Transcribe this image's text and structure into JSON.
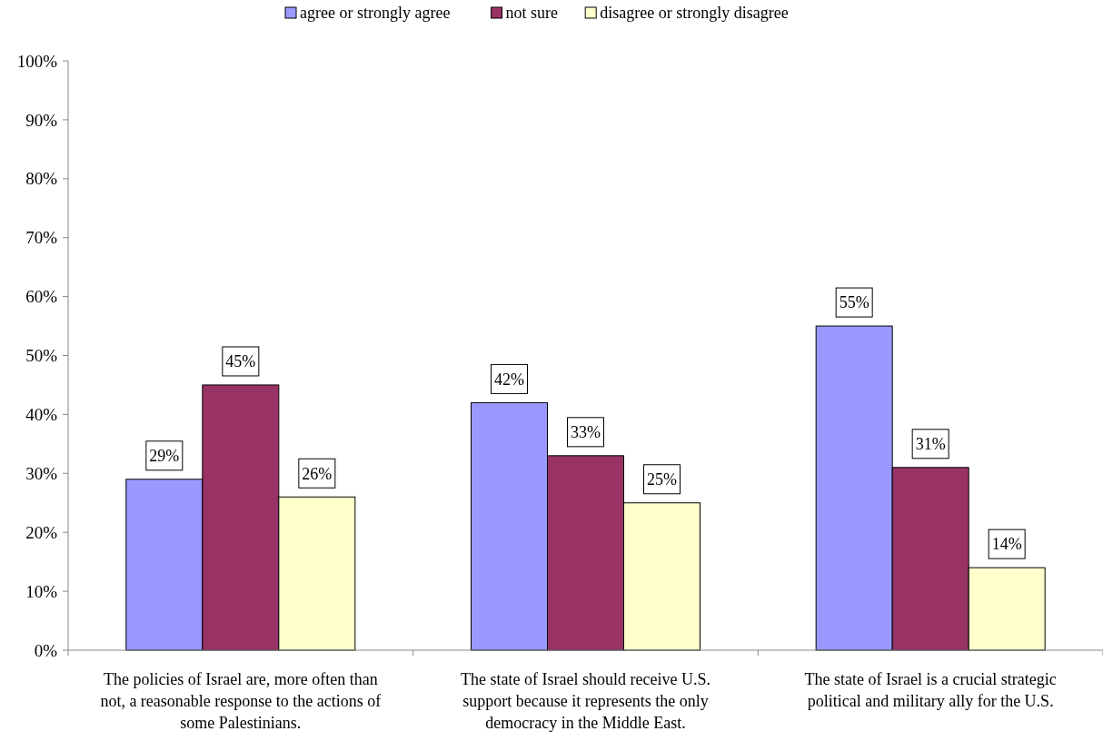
{
  "chart_data": {
    "type": "bar",
    "categories": [
      "The policies of Israel are, more often than not, a reasonable response to the actions of some Palestinians.",
      "The state of Israel should receive U.S. support because it represents the only democracy in the Middle East.",
      "The state of Israel is a crucial strategic political and military ally for the U.S."
    ],
    "series": [
      {
        "name": "agree or strongly agree",
        "color": "#9999ff",
        "values": [
          29,
          42,
          55
        ],
        "value_labels": [
          "29%",
          "42%",
          "55%"
        ]
      },
      {
        "name": "not sure",
        "color": "#993366",
        "values": [
          45,
          33,
          31
        ],
        "value_labels": [
          "45%",
          "33%",
          "31%"
        ]
      },
      {
        "name": "disagree or strongly disagree",
        "color": "#ffffcc",
        "values": [
          26,
          25,
          14
        ],
        "value_labels": [
          "26%",
          "25%",
          "14%"
        ]
      }
    ],
    "ylim": [
      0,
      100
    ],
    "yticks": [
      {
        "value": 0,
        "label": "0%"
      },
      {
        "value": 10,
        "label": "10%"
      },
      {
        "value": 20,
        "label": "20%"
      },
      {
        "value": 30,
        "label": "30%"
      },
      {
        "value": 40,
        "label": "40%"
      },
      {
        "value": 50,
        "label": "50%"
      },
      {
        "value": 60,
        "label": "60%"
      },
      {
        "value": 70,
        "label": "70%"
      },
      {
        "value": 80,
        "label": "80%"
      },
      {
        "value": 90,
        "label": "90%"
      },
      {
        "value": 100,
        "label": "100%"
      }
    ],
    "legend": "top",
    "grid": false
  }
}
